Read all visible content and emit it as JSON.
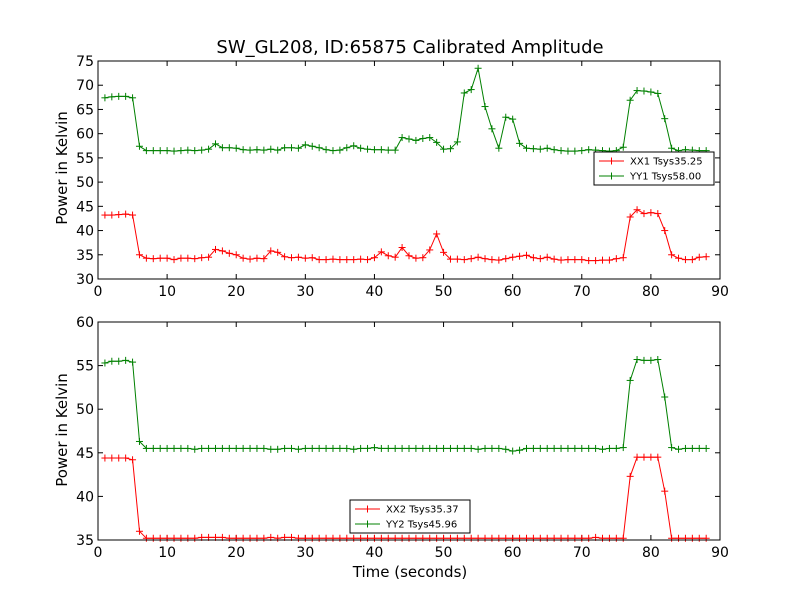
{
  "chart_data": [
    {
      "type": "line",
      "title": "SW_GL208, ID:65875 Calibrated Amplitude",
      "xlabel": "",
      "ylabel": "Power in Kelvin",
      "xlim": [
        0,
        90
      ],
      "ylim": [
        30,
        75
      ],
      "xticks": [
        0,
        10,
        20,
        30,
        40,
        50,
        60,
        70,
        80,
        90
      ],
      "yticks": [
        30,
        35,
        40,
        45,
        50,
        55,
        60,
        65,
        70,
        75
      ],
      "grid": false,
      "legend_position": "center-right",
      "series": [
        {
          "name": "XX1 Tsys35.25",
          "color": "#ff0000",
          "marker": "plus",
          "x": [
            1,
            2,
            3,
            4,
            5,
            6,
            7,
            8,
            9,
            10,
            11,
            12,
            13,
            14,
            15,
            16,
            17,
            18,
            19,
            20,
            21,
            22,
            23,
            24,
            25,
            26,
            27,
            28,
            29,
            30,
            31,
            32,
            33,
            34,
            35,
            36,
            37,
            38,
            39,
            40,
            41,
            42,
            43,
            44,
            45,
            46,
            47,
            48,
            49,
            50,
            51,
            52,
            53,
            54,
            55,
            56,
            57,
            58,
            59,
            60,
            61,
            62,
            63,
            64,
            65,
            66,
            67,
            68,
            69,
            70,
            71,
            72,
            73,
            74,
            75,
            76,
            77,
            78,
            79,
            80,
            81,
            82,
            83,
            84,
            85,
            86,
            87,
            88
          ],
          "y": [
            43.2,
            43.2,
            43.3,
            43.4,
            43.2,
            35.0,
            34.3,
            34.2,
            34.3,
            34.3,
            34.0,
            34.3,
            34.3,
            34.2,
            34.4,
            34.5,
            36.1,
            35.8,
            35.3,
            35.0,
            34.3,
            34.1,
            34.3,
            34.2,
            35.8,
            35.5,
            34.6,
            34.4,
            34.5,
            34.3,
            34.4,
            34.0,
            34.0,
            34.1,
            34.0,
            34.0,
            34.0,
            34.1,
            34.0,
            34.4,
            35.6,
            34.8,
            34.5,
            36.5,
            34.8,
            34.3,
            34.4,
            36.0,
            39.3,
            35.5,
            34.1,
            34.1,
            34.0,
            34.2,
            34.5,
            34.2,
            34.0,
            33.9,
            34.2,
            34.5,
            34.7,
            34.9,
            34.4,
            34.2,
            34.5,
            34.1,
            33.9,
            34.0,
            34.0,
            34.0,
            33.8,
            33.8,
            33.9,
            33.9,
            34.2,
            34.4,
            42.8,
            44.3,
            43.5,
            43.7,
            43.5,
            40.0,
            35.0,
            34.3,
            34.0,
            34.0,
            34.5,
            34.6
          ]
        },
        {
          "name": "YY1 Tsys58.00",
          "color": "#008000",
          "marker": "plus",
          "x": [
            1,
            2,
            3,
            4,
            5,
            6,
            7,
            8,
            9,
            10,
            11,
            12,
            13,
            14,
            15,
            16,
            17,
            18,
            19,
            20,
            21,
            22,
            23,
            24,
            25,
            26,
            27,
            28,
            29,
            30,
            31,
            32,
            33,
            34,
            35,
            36,
            37,
            38,
            39,
            40,
            41,
            42,
            43,
            44,
            45,
            46,
            47,
            48,
            49,
            50,
            51,
            52,
            53,
            54,
            55,
            56,
            57,
            58,
            59,
            60,
            61,
            62,
            63,
            64,
            65,
            66,
            67,
            68,
            69,
            70,
            71,
            72,
            73,
            74,
            75,
            76,
            77,
            78,
            79,
            80,
            81,
            82,
            83,
            84,
            85,
            86,
            87,
            88
          ],
          "y": [
            67.4,
            67.6,
            67.7,
            67.7,
            67.4,
            57.4,
            56.5,
            56.5,
            56.5,
            56.5,
            56.4,
            56.5,
            56.6,
            56.5,
            56.6,
            56.8,
            57.9,
            57.1,
            57.1,
            57.0,
            56.7,
            56.6,
            56.7,
            56.6,
            56.8,
            56.6,
            57.1,
            57.1,
            57.0,
            57.7,
            57.4,
            57.1,
            56.7,
            56.5,
            56.6,
            57.1,
            57.5,
            57.0,
            56.8,
            56.7,
            56.7,
            56.6,
            56.6,
            59.2,
            58.9,
            58.6,
            59.0,
            59.2,
            58.2,
            56.8,
            56.9,
            58.3,
            68.4,
            69.1,
            73.5,
            65.6,
            61.0,
            57.0,
            63.4,
            63.0,
            58.0,
            57.0,
            56.9,
            56.8,
            57.0,
            56.7,
            56.5,
            56.4,
            56.4,
            56.5,
            56.7,
            56.6,
            56.5,
            56.4,
            56.5,
            57.2,
            66.9,
            68.9,
            68.8,
            68.6,
            68.3,
            63.1,
            57.0,
            56.5,
            56.7,
            56.6,
            56.5,
            56.5
          ]
        }
      ]
    },
    {
      "type": "line",
      "title": "",
      "xlabel": "Time (seconds)",
      "ylabel": "Power in Kelvin",
      "xlim": [
        0,
        90
      ],
      "ylim": [
        35,
        60
      ],
      "xticks": [
        0,
        10,
        20,
        30,
        40,
        50,
        60,
        70,
        80,
        90
      ],
      "yticks": [
        35,
        40,
        45,
        50,
        55,
        60
      ],
      "grid": false,
      "legend_position": "bottom-center",
      "series": [
        {
          "name": "XX2 Tsys35.37",
          "color": "#ff0000",
          "marker": "plus",
          "x": [
            1,
            2,
            3,
            4,
            5,
            6,
            7,
            8,
            9,
            10,
            11,
            12,
            13,
            14,
            15,
            16,
            17,
            18,
            19,
            20,
            21,
            22,
            23,
            24,
            25,
            26,
            27,
            28,
            29,
            30,
            31,
            32,
            33,
            34,
            35,
            36,
            37,
            38,
            39,
            40,
            41,
            42,
            43,
            44,
            45,
            46,
            47,
            48,
            49,
            50,
            51,
            52,
            53,
            54,
            55,
            56,
            57,
            58,
            59,
            60,
            61,
            62,
            63,
            64,
            65,
            66,
            67,
            68,
            69,
            70,
            71,
            72,
            73,
            74,
            75,
            76,
            77,
            78,
            79,
            80,
            81,
            82,
            83,
            84,
            85,
            86,
            87,
            88
          ],
          "y": [
            44.4,
            44.4,
            44.4,
            44.4,
            44.2,
            36.0,
            35.2,
            35.2,
            35.2,
            35.2,
            35.2,
            35.2,
            35.2,
            35.2,
            35.3,
            35.3,
            35.3,
            35.3,
            35.2,
            35.2,
            35.2,
            35.2,
            35.2,
            35.2,
            35.3,
            35.2,
            35.3,
            35.3,
            35.2,
            35.2,
            35.2,
            35.2,
            35.2,
            35.2,
            35.2,
            35.2,
            35.2,
            35.2,
            35.2,
            35.2,
            35.2,
            35.2,
            35.2,
            35.2,
            35.2,
            35.2,
            35.2,
            35.2,
            35.2,
            35.2,
            35.2,
            35.2,
            35.2,
            35.2,
            35.2,
            35.2,
            35.2,
            35.2,
            35.2,
            35.2,
            35.2,
            35.2,
            35.2,
            35.2,
            35.2,
            35.2,
            35.2,
            35.2,
            35.2,
            35.2,
            35.2,
            35.3,
            35.2,
            35.2,
            35.2,
            35.2,
            42.3,
            44.5,
            44.5,
            44.5,
            44.5,
            40.6,
            35.2,
            35.2,
            35.2,
            35.2,
            35.2,
            35.2
          ]
        },
        {
          "name": "YY2 Tsys45.96",
          "color": "#008000",
          "marker": "plus",
          "x": [
            1,
            2,
            3,
            4,
            5,
            6,
            7,
            8,
            9,
            10,
            11,
            12,
            13,
            14,
            15,
            16,
            17,
            18,
            19,
            20,
            21,
            22,
            23,
            24,
            25,
            26,
            27,
            28,
            29,
            30,
            31,
            32,
            33,
            34,
            35,
            36,
            37,
            38,
            39,
            40,
            41,
            42,
            43,
            44,
            45,
            46,
            47,
            48,
            49,
            50,
            51,
            52,
            53,
            54,
            55,
            56,
            57,
            58,
            59,
            60,
            61,
            62,
            63,
            64,
            65,
            66,
            67,
            68,
            69,
            70,
            71,
            72,
            73,
            74,
            75,
            76,
            77,
            78,
            79,
            80,
            81,
            82,
            83,
            84,
            85,
            86,
            87,
            88
          ],
          "y": [
            55.3,
            55.5,
            55.5,
            55.6,
            55.4,
            46.3,
            45.5,
            45.5,
            45.5,
            45.5,
            45.5,
            45.5,
            45.5,
            45.4,
            45.5,
            45.5,
            45.5,
            45.5,
            45.5,
            45.5,
            45.5,
            45.5,
            45.5,
            45.5,
            45.4,
            45.4,
            45.5,
            45.5,
            45.4,
            45.5,
            45.5,
            45.5,
            45.5,
            45.5,
            45.5,
            45.5,
            45.4,
            45.5,
            45.5,
            45.6,
            45.5,
            45.5,
            45.5,
            45.5,
            45.5,
            45.5,
            45.5,
            45.5,
            45.5,
            45.5,
            45.5,
            45.5,
            45.5,
            45.5,
            45.4,
            45.5,
            45.5,
            45.5,
            45.4,
            45.2,
            45.3,
            45.5,
            45.5,
            45.5,
            45.5,
            45.5,
            45.5,
            45.5,
            45.5,
            45.5,
            45.5,
            45.5,
            45.4,
            45.5,
            45.5,
            45.6,
            53.3,
            55.7,
            55.6,
            55.6,
            55.7,
            51.4,
            45.6,
            45.4,
            45.5,
            45.5,
            45.5,
            45.5
          ]
        }
      ]
    }
  ]
}
